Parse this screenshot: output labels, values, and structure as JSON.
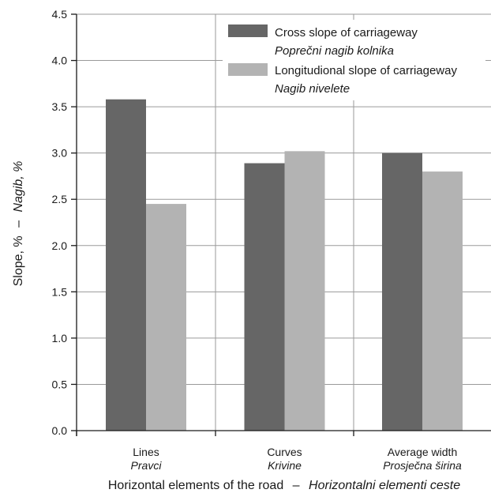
{
  "chart_data": {
    "type": "bar",
    "categories": [
      "Lines",
      "Curves",
      "Average width"
    ],
    "categories_secondary": [
      "Pravci",
      "Krivine",
      "Prosječna širina"
    ],
    "series": [
      {
        "name": "Cross slope of carriageway",
        "name_secondary": "Poprečni nagib kolnika",
        "color": "#666666",
        "values": [
          3.58,
          2.89,
          3.0
        ]
      },
      {
        "name": "Longitudional slope of carriageway",
        "name_secondary": "Nagib nivelete",
        "color": "#b3b3b3",
        "values": [
          2.45,
          3.02,
          2.8
        ]
      }
    ],
    "ylim": [
      0,
      4.5
    ],
    "yticks": [
      "0.0",
      "0.5",
      "1.0",
      "1.5",
      "2.0",
      "2.5",
      "3.0",
      "3.5",
      "4.0",
      "4.5"
    ],
    "ylabel": "Slope, %",
    "ylabel_secondary": "Nagib, %",
    "xlabel": "Horizontal elements of the road",
    "xlabel_secondary": "Horizontalni elementi ceste",
    "label_separator": "–",
    "grid": "horizontal and category dividers",
    "legend_position": "top-right"
  }
}
